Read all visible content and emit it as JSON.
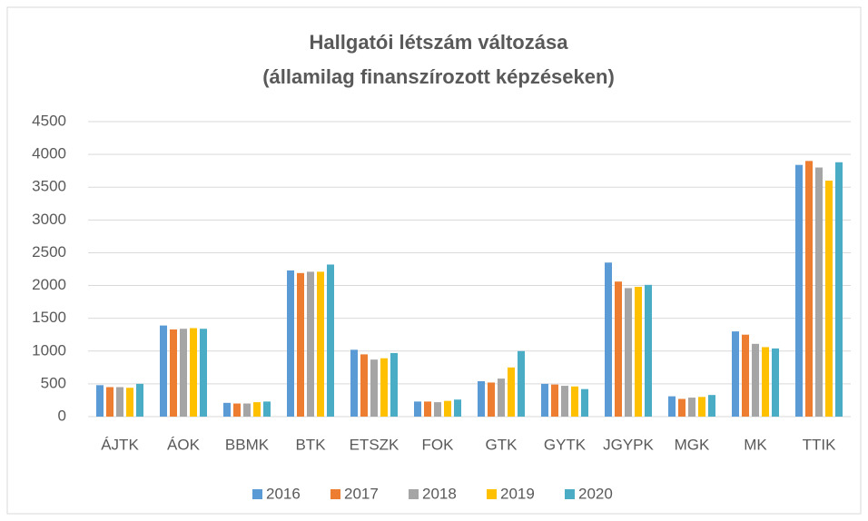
{
  "chart_data": {
    "type": "bar",
    "title": [
      "Hallgatói létszám változása",
      "(államilag finanszírozott képzéseken)"
    ],
    "categories": [
      "ÁJTK",
      "ÁOK",
      "BBMK",
      "BTK",
      "ETSZK",
      "FOK",
      "GTK",
      "GYTK",
      "JGYPK",
      "MGK",
      "MK",
      "TTIK"
    ],
    "series": [
      {
        "name": "2016",
        "color": "#5b9bd5",
        "values": [
          480,
          1390,
          210,
          2230,
          1020,
          230,
          540,
          500,
          2350,
          310,
          1300,
          3840
        ]
      },
      {
        "name": "2017",
        "color": "#ed7d31",
        "values": [
          450,
          1330,
          200,
          2190,
          950,
          230,
          520,
          490,
          2060,
          270,
          1250,
          3900
        ]
      },
      {
        "name": "2018",
        "color": "#a5a5a5",
        "values": [
          450,
          1340,
          200,
          2210,
          870,
          220,
          580,
          470,
          1960,
          290,
          1110,
          3800
        ]
      },
      {
        "name": "2019",
        "color": "#ffc000",
        "values": [
          440,
          1350,
          220,
          2210,
          890,
          240,
          750,
          460,
          1980,
          300,
          1060,
          3600
        ]
      },
      {
        "name": "2020",
        "color": "#4bacc6",
        "values": [
          500,
          1340,
          230,
          2320,
          970,
          260,
          1000,
          420,
          2010,
          330,
          1040,
          3880
        ]
      }
    ],
    "ylim": [
      0,
      4500
    ],
    "yticks": [
      0,
      500,
      1000,
      1500,
      2000,
      2500,
      3000,
      3500,
      4000,
      4500
    ],
    "grid": true,
    "legend": "bottom"
  }
}
